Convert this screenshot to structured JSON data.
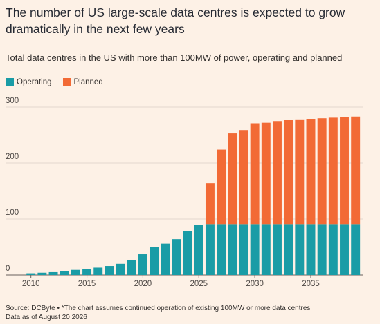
{
  "chart_data": {
    "type": "stacked_bar",
    "title": "The number of US large-scale data centres is expected to grow dramatically in the next few years",
    "subtitle": "Total data centres in the US with more than 100MW of power, operating and planned",
    "x": [
      2010,
      2011,
      2012,
      2013,
      2014,
      2015,
      2016,
      2017,
      2018,
      2019,
      2020,
      2021,
      2022,
      2023,
      2024,
      2025,
      2026,
      2027,
      2028,
      2029,
      2030,
      2031,
      2032,
      2033,
      2034,
      2035,
      2036,
      2037,
      2038,
      2039
    ],
    "series": [
      {
        "name": "Operating",
        "color": "#1a9ca6",
        "values": [
          3,
          4,
          5,
          7,
          9,
          10,
          13,
          16,
          20,
          27,
          37,
          50,
          56,
          64,
          79,
          90,
          91,
          91,
          91,
          91,
          91,
          91,
          91,
          91,
          91,
          91,
          91,
          91,
          91,
          91
        ]
      },
      {
        "name": "Planned",
        "color": "#f26a35",
        "values": [
          0,
          0,
          0,
          0,
          0,
          0,
          0,
          0,
          0,
          0,
          0,
          0,
          0,
          0,
          0,
          0,
          73,
          133,
          162,
          168,
          180,
          181,
          184,
          186,
          187,
          188,
          189,
          190,
          191,
          192
        ]
      }
    ],
    "xlim": [
      2009.4,
      2039.7
    ],
    "xticks": [
      2010,
      2015,
      2020,
      2025,
      2030,
      2035
    ],
    "ylim": [
      0,
      300
    ],
    "yticks": [
      0,
      100,
      200,
      300
    ],
    "grid": true,
    "source": "Source: DCByte • *The chart assumes continued operation of existing 100MW or more data centres",
    "note": "Data as of August 20 2026"
  }
}
